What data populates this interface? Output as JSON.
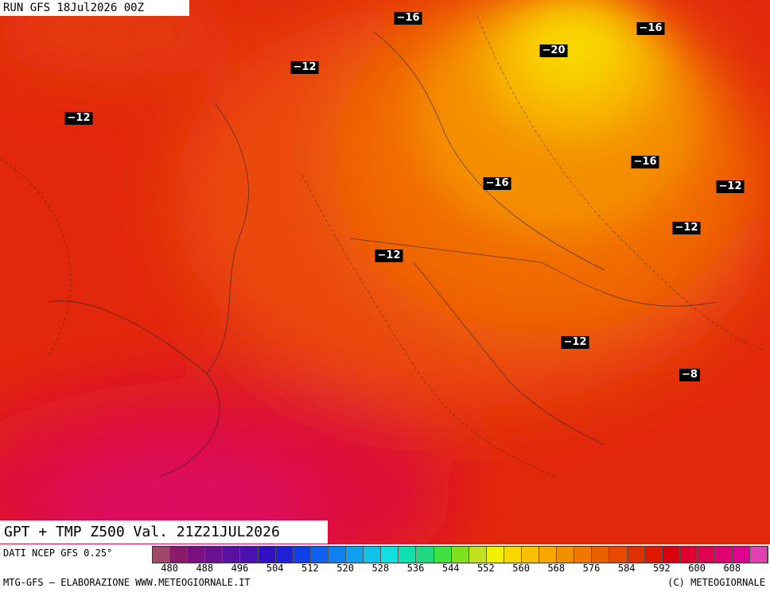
{
  "header": {
    "run": "RUN GFS 18Jul2026 00Z",
    "title": "GPT + TMP Z500 Val. 21Z21JUL2026"
  },
  "contour_labels": [
    "−16",
    "−20",
    "−16",
    "−12",
    "−12",
    "−16",
    "−16",
    "−12",
    "−12",
    "−12",
    "−12",
    "−8"
  ],
  "colorbar": {
    "ticks": [
      "480",
      "488",
      "496",
      "504",
      "512",
      "520",
      "528",
      "536",
      "544",
      "552",
      "560",
      "568",
      "576",
      "584",
      "592",
      "600",
      "608"
    ],
    "colors": [
      "#a04868",
      "#8a1a6a",
      "#7a1080",
      "#6a1090",
      "#5a10a0",
      "#4a10b0",
      "#3010c0",
      "#2020d8",
      "#1040e8",
      "#1060f0",
      "#1080f0",
      "#10a0f0",
      "#10c0e8",
      "#10e0e0",
      "#10e0b0",
      "#20d880",
      "#40e040",
      "#80e020",
      "#c0e020",
      "#f0f000",
      "#f8d800",
      "#f8c000",
      "#f8a800",
      "#f09000",
      "#f07800",
      "#e86000",
      "#e84800",
      "#e03000",
      "#e01800",
      "#d80010",
      "#e00030",
      "#e00050",
      "#e00070",
      "#e00090",
      "#e040b0"
    ]
  },
  "footer": {
    "source": "DATI NCEP GFS 0.25°",
    "left": "MTG-GFS — ELABORAZIONE WWW.METEOGIORNALE.IT",
    "right": "(C) METEOGIORNALE"
  }
}
